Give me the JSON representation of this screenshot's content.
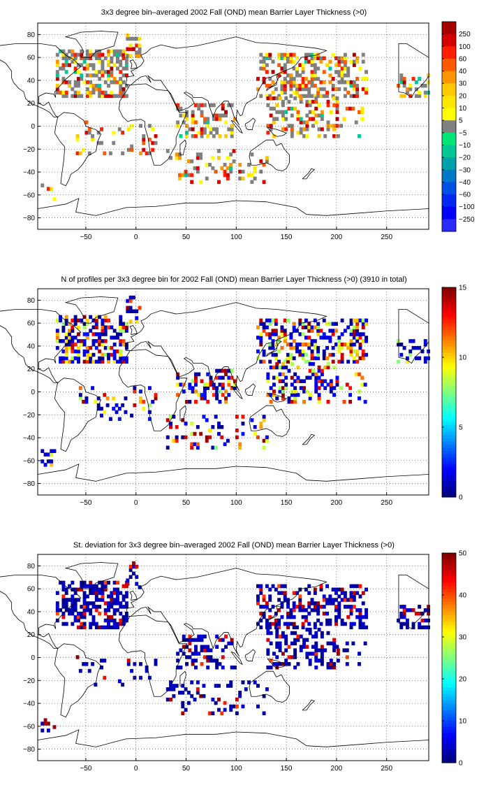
{
  "panels": [
    {
      "title": "3x3 degree bin–averaged 2002 Fall (OND) mean Barrier Layer Thickness (>0)",
      "x_ticks": [
        "−50",
        "0",
        "50",
        "100",
        "150",
        "200",
        "250"
      ],
      "y_ticks": [
        "80",
        "60",
        "40",
        "20",
        "0",
        "−20",
        "−40",
        "−60",
        "−80"
      ],
      "colorbar": {
        "kind": "discrete",
        "labels": [
          "250",
          "100",
          "60",
          "40",
          "30",
          "20",
          "10",
          "5",
          "−5",
          "−10",
          "−20",
          "−30",
          "−40",
          "−60",
          "−100",
          "−250"
        ],
        "colors": [
          "#a80000",
          "#d40000",
          "#ff1e00",
          "#ff5a00",
          "#ff9600",
          "#ffc800",
          "#ffe600",
          "#ffff00",
          "#808080",
          "#00e676",
          "#00c896",
          "#00a0aa",
          "#0078c8",
          "#0050e6",
          "#0028f0",
          "#0000ff",
          "#2a2aff"
        ]
      }
    },
    {
      "title": "N of profiles per 3x3 degree bin for 2002 Fall (OND) mean Barrier Layer Thickness (>0) (3910 in total)",
      "x_ticks": [
        "−50",
        "0",
        "50",
        "100",
        "150",
        "200",
        "250"
      ],
      "y_ticks": [
        "80",
        "60",
        "40",
        "20",
        "0",
        "−20",
        "−40",
        "−60",
        "−80"
      ],
      "colorbar": {
        "kind": "jet",
        "labels": [
          "15",
          "10",
          "5",
          "0"
        ]
      }
    },
    {
      "title": "St. deviation for 3x3 degree bin–averaged 2002 Fall (OND) mean Barrier Layer Thickness (>0)",
      "x_ticks": [
        "−50",
        "0",
        "50",
        "100",
        "150",
        "200",
        "250"
      ],
      "y_ticks": [
        "80",
        "60",
        "40",
        "20",
        "0",
        "−20",
        "−40",
        "−60",
        "−80"
      ],
      "colorbar": {
        "kind": "jet",
        "labels": [
          "50",
          "40",
          "30",
          "20",
          "10",
          "0"
        ]
      }
    }
  ]
}
